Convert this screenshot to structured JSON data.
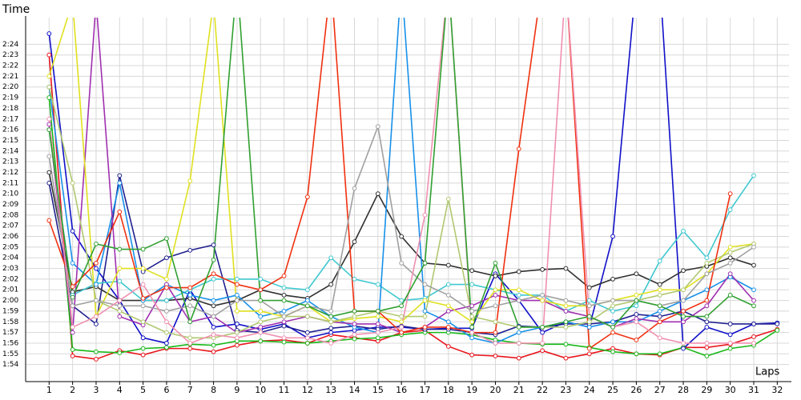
{
  "chart_data": {
    "type": "line",
    "y_label": "Time",
    "x_label": "Laps",
    "grid": true,
    "x": [
      1,
      2,
      3,
      4,
      5,
      6,
      7,
      8,
      9,
      10,
      11,
      12,
      13,
      14,
      15,
      16,
      17,
      18,
      19,
      20,
      21,
      22,
      23,
      24,
      25,
      26,
      27,
      28,
      29,
      30,
      31,
      32
    ],
    "xlim": [
      0,
      32.5
    ],
    "xticks": [
      1,
      2,
      3,
      4,
      5,
      6,
      7,
      8,
      9,
      10,
      11,
      12,
      13,
      14,
      15,
      16,
      17,
      18,
      19,
      20,
      21,
      22,
      23,
      24,
      25,
      26,
      27,
      28,
      29,
      30,
      31,
      32
    ],
    "ylim": [
      112.4,
      146.5
    ],
    "yticks": [
      {
        "value": 114,
        "label": "1:54"
      },
      {
        "value": 115,
        "label": "1:55"
      },
      {
        "value": 116,
        "label": "1:56"
      },
      {
        "value": 117,
        "label": "1:57"
      },
      {
        "value": 118,
        "label": "1:58"
      },
      {
        "value": 119,
        "label": "1:59"
      },
      {
        "value": 120,
        "label": "2:00"
      },
      {
        "value": 121,
        "label": "2:01"
      },
      {
        "value": 122,
        "label": "2:02"
      },
      {
        "value": 123,
        "label": "2:03"
      },
      {
        "value": 124,
        "label": "2:04"
      },
      {
        "value": 125,
        "label": "2:05"
      },
      {
        "value": 126,
        "label": "2:06"
      },
      {
        "value": 127,
        "label": "2:07"
      },
      {
        "value": 128,
        "label": "2:08"
      },
      {
        "value": 129,
        "label": "2:09"
      },
      {
        "value": 130,
        "label": "2:10"
      },
      {
        "value": 131,
        "label": "2:11"
      },
      {
        "value": 132,
        "label": "2:12"
      },
      {
        "value": 133,
        "label": "2:13"
      },
      {
        "value": 134,
        "label": "2:14"
      },
      {
        "value": 135,
        "label": "2:15"
      },
      {
        "value": 136,
        "label": "2:16"
      },
      {
        "value": 137,
        "label": "2:17"
      },
      {
        "value": 138,
        "label": "2:18"
      },
      {
        "value": 139,
        "label": "2:19"
      },
      {
        "value": 140,
        "label": "2:20"
      },
      {
        "value": 141,
        "label": "2:21"
      },
      {
        "value": 142,
        "label": "2:22"
      },
      {
        "value": 143,
        "label": "2:23"
      },
      {
        "value": 144,
        "label": "2:24"
      }
    ],
    "series": [
      {
        "color": "#e8141c",
        "values": [
          143,
          114.8,
          114.5,
          115.3,
          114.9,
          115.5,
          115.5,
          115.2,
          115.8,
          116.2,
          116.3,
          116.0,
          116.8,
          116.5,
          116.2,
          117.0,
          117.2,
          115.7,
          114.9,
          114.8,
          114.6,
          115.3,
          114.6,
          115.0,
          115.5,
          115.0,
          114.9,
          115.6,
          115.6,
          115.9,
          116.6,
          117.3
        ]
      },
      {
        "color": "#18b818",
        "values": [
          139,
          115.4,
          115.2,
          115.1,
          115.5,
          115.6,
          115.9,
          115.8,
          116.2,
          116.2,
          116.1,
          116.0,
          116.2,
          116.4,
          116.5,
          116.8,
          117.0,
          117.0,
          116.8,
          116.3,
          116.0,
          115.9,
          115.9,
          115.6,
          115.2,
          115.0,
          115.0,
          115.6,
          114.8,
          115.5,
          115.8,
          117.2
        ]
      },
      {
        "color": "#1010c8",
        "values": [
          145,
          126.5,
          123,
          120,
          116.5,
          116.0,
          121,
          117.5,
          117.8,
          117.3,
          117.8,
          116.5,
          117.0,
          117.2,
          117.5,
          117.5,
          117.3,
          117.4,
          117.4,
          122.5,
          120.0,
          117.0,
          118.0,
          117.5,
          126.0,
          150,
          150,
          115.5,
          117.5,
          116.8,
          117.8,
          117.9
        ]
      },
      {
        "color": "#202090",
        "values": [
          131,
          119.5,
          117.8,
          131.7,
          122.7,
          124,
          124.7,
          125.2,
          117.2,
          117.0,
          117.6,
          117.0,
          117.4,
          117.6,
          117.3,
          117.6,
          117.3,
          117.3,
          117.0,
          116.8,
          117.6,
          117.5,
          117.8,
          117.8,
          118.0,
          118.7,
          118.5,
          119.0,
          118.0,
          117.8,
          117.8,
          117.8
        ]
      },
      {
        "color": "#303030",
        "values": [
          132,
          120.8,
          121.3,
          120.0,
          120.0,
          120.0,
          120.2,
          119.5,
          120.0,
          121.0,
          120.5,
          120.2,
          121.5,
          125.5,
          130.0,
          126.0,
          123.5,
          123.3,
          122.8,
          122.3,
          122.7,
          122.9,
          123.0,
          121.2,
          122.0,
          122.5,
          121.5,
          122.8,
          123.2,
          124.0,
          123.3,
          null
        ]
      },
      {
        "color": "#40c8d0",
        "values": [
          136,
          120.5,
          121.6,
          121.8,
          120.0,
          120.0,
          121.0,
          122.0,
          122.0,
          122.0,
          121.2,
          121.0,
          124.0,
          122.0,
          121.5,
          120.0,
          120.2,
          121.5,
          121.5,
          121.0,
          120.5,
          120.5,
          119.0,
          120.0,
          119.0,
          119.5,
          123.7,
          126.5,
          124.0,
          128.5,
          131.7,
          null
        ]
      },
      {
        "color": "#1890e8",
        "values": [
          140,
          123.5,
          121.5,
          131.0,
          120,
          121.5,
          120.5,
          120,
          120.5,
          118.5,
          119,
          120,
          118.5,
          117.5,
          117.0,
          150,
          119,
          118,
          116.5,
          116.0,
          117.0,
          117.5,
          118.0,
          117.5,
          118.0,
          118.0,
          119.0,
          120.0,
          121.0,
          122.2,
          121.0,
          null
        ]
      },
      {
        "color": "#a030b0",
        "values": [
          136.5,
          117,
          148,
          118.5,
          117.7,
          121.5,
          118,
          118.5,
          117,
          117.5,
          118,
          118.5,
          118.0,
          117.8,
          117.8,
          117.0,
          117.5,
          119.0,
          119.5,
          120.5,
          120.0,
          120.0,
          119.0,
          118.5,
          117.5,
          118.3,
          118.0,
          118.0,
          119.5,
          122.5,
          120.0,
          null
        ]
      },
      {
        "color": "#e0e020",
        "values": [
          141,
          148,
          118.5,
          123,
          123,
          122,
          131.2,
          148,
          119,
          119,
          118.5,
          119.5,
          118,
          118.3,
          118.5,
          118.0,
          120.0,
          119.5,
          118.0,
          121,
          121,
          120,
          119.5,
          119.5,
          120.0,
          120.5,
          121,
          121.0,
          122.5,
          125,
          125.3,
          null
        ]
      },
      {
        "color": "#b0c870",
        "values": [
          140,
          131,
          120.0,
          119,
          118,
          117,
          116.5,
          116.5,
          117,
          118,
          118.5,
          118.5,
          118.0,
          118.5,
          119.0,
          118.5,
          118.5,
          129.5,
          118.5,
          118.0,
          117.5,
          117.5,
          117.5,
          118.0,
          119.5,
          120.0,
          120.5,
          121.0,
          123.5,
          124.5,
          125.3,
          null
        ]
      },
      {
        "color": "#f03010",
        "values": [
          127.5,
          121.3,
          123.5,
          128.3,
          120.2,
          121.2,
          121.2,
          122.5,
          121.5,
          121.0,
          122.3,
          129.7,
          150,
          119.0,
          119.0,
          117.0,
          117.5,
          117.5,
          117.0,
          117.0,
          134.2,
          150,
          150,
          115.5,
          117.0,
          116.3,
          118.0,
          119.0,
          120.0,
          130.0,
          null,
          null
        ]
      },
      {
        "color": "#a0a0a0",
        "values": [
          133.5,
          119.5,
          120,
          119.5,
          119.5,
          119.0,
          119.5,
          118.5,
          120.0,
          120.0,
          118.5,
          119.5,
          119.0,
          130.5,
          136.3,
          123.5,
          121.5,
          120.5,
          119.0,
          119.5,
          120.0,
          120.5,
          120.0,
          119.5,
          120.0,
          120.0,
          119.5,
          120.0,
          122.5,
          123.5,
          125.0,
          null
        ]
      },
      {
        "color": "#f090b0",
        "values": [
          137,
          117.5,
          118.5,
          120,
          121.5,
          118,
          116.0,
          116.8,
          116.5,
          117.0,
          116.5,
          116.5,
          116.0,
          116.8,
          117.0,
          117.5,
          128.0,
          150,
          117.0,
          116.0,
          116.0,
          116.0,
          150,
          118.5,
          117.5,
          118.0,
          116.5,
          116.0,
          116.0,
          116.0,
          116.0,
          null
        ]
      },
      {
        "color": "#30a030",
        "values": [
          136,
          120.3,
          125.3,
          124.8,
          124.8,
          125.8,
          118.0,
          123.8,
          150,
          120.0,
          120.0,
          119.5,
          118.5,
          119.0,
          119.0,
          119.5,
          123.5,
          150,
          117.5,
          123.5,
          117.5,
          117.5,
          118.0,
          118.5,
          117.5,
          120.0,
          119.5,
          118.5,
          118.5,
          120.5,
          119.5,
          null
        ]
      }
    ]
  }
}
